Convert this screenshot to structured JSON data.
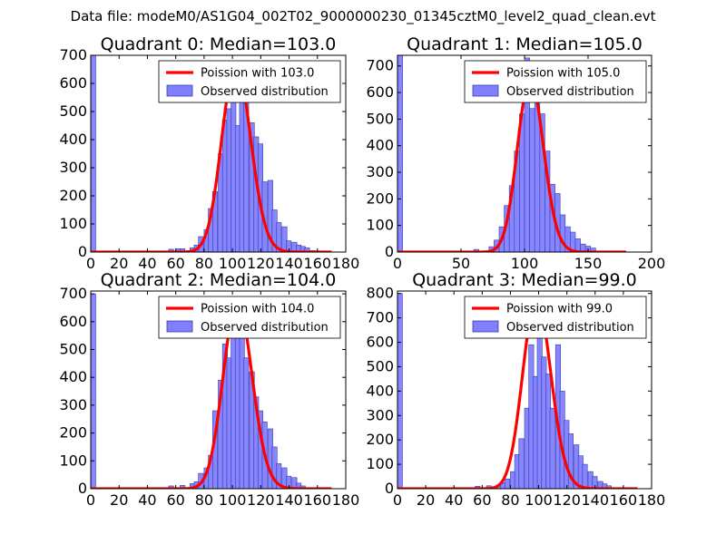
{
  "suptitle": "Data file: modeM0/AS1G04_002T02_9000000230_01345cztM0_level2_quad_clean.evt",
  "colors": {
    "hist_fill": "#7f7fff",
    "hist_edge": "#3b3bb0",
    "poisson": "#ff0000",
    "axis": "#000000"
  },
  "legend_labels": {
    "observed": "Observed distribution"
  },
  "chart_data": [
    {
      "type": "bar",
      "title": "Quadrant 0: Median=103.0",
      "median": 103.0,
      "poisson_label": "Poission with 103.0",
      "poisson_peak": 670,
      "xlim": [
        0,
        180
      ],
      "ylim": [
        0,
        700
      ],
      "xticks": [
        0,
        20,
        40,
        60,
        80,
        100,
        120,
        140,
        160,
        180
      ],
      "yticks": [
        0,
        100,
        200,
        300,
        400,
        500,
        600,
        700
      ],
      "bin_width": 3.5,
      "bins": [
        [
          0,
          700
        ],
        [
          55,
          10
        ],
        [
          60,
          12
        ],
        [
          63,
          12
        ],
        [
          70,
          15
        ],
        [
          73,
          25
        ],
        [
          76,
          55
        ],
        [
          80,
          80
        ],
        [
          83,
          155
        ],
        [
          86,
          215
        ],
        [
          90,
          350
        ],
        [
          93,
          470
        ],
        [
          96,
          510
        ],
        [
          99,
          670
        ],
        [
          102,
          450
        ],
        [
          105,
          580
        ],
        [
          108,
          660
        ],
        [
          112,
          460
        ],
        [
          115,
          410
        ],
        [
          118,
          385
        ],
        [
          121,
          250
        ],
        [
          125,
          255
        ],
        [
          128,
          150
        ],
        [
          131,
          105
        ],
        [
          135,
          90
        ],
        [
          138,
          40
        ],
        [
          142,
          35
        ],
        [
          145,
          25
        ],
        [
          148,
          20
        ],
        [
          151,
          15
        ],
        [
          155,
          5
        ]
      ]
    },
    {
      "type": "bar",
      "title": "Quadrant 1: Median=105.0",
      "median": 105.0,
      "poisson_label": "Poission with 105.0",
      "poisson_peak": 650,
      "xlim": [
        0,
        200
      ],
      "ylim": [
        0,
        740
      ],
      "xticks": [
        0,
        50,
        100,
        150,
        200
      ],
      "yticks": [
        0,
        100,
        200,
        300,
        400,
        500,
        600,
        700
      ],
      "bin_width": 4,
      "bins": [
        [
          0,
          740
        ],
        [
          60,
          10
        ],
        [
          72,
          20
        ],
        [
          76,
          45
        ],
        [
          80,
          95
        ],
        [
          84,
          175
        ],
        [
          88,
          250
        ],
        [
          92,
          380
        ],
        [
          96,
          520
        ],
        [
          100,
          730
        ],
        [
          104,
          540
        ],
        [
          108,
          650
        ],
        [
          112,
          520
        ],
        [
          116,
          380
        ],
        [
          120,
          255
        ],
        [
          124,
          220
        ],
        [
          128,
          140
        ],
        [
          132,
          95
        ],
        [
          136,
          75
        ],
        [
          140,
          50
        ],
        [
          144,
          30
        ],
        [
          148,
          22
        ],
        [
          152,
          15
        ]
      ]
    },
    {
      "type": "bar",
      "title": "Quadrant 2: Median=104.0",
      "median": 104.0,
      "poisson_label": "Poission with 104.0",
      "poisson_peak": 670,
      "xlim": [
        0,
        180
      ],
      "ylim": [
        0,
        710
      ],
      "xticks": [
        0,
        20,
        40,
        60,
        80,
        100,
        120,
        140,
        160,
        180
      ],
      "yticks": [
        0,
        100,
        200,
        300,
        400,
        500,
        600,
        700
      ],
      "bin_width": 3.5,
      "bins": [
        [
          0,
          700
        ],
        [
          55,
          10
        ],
        [
          63,
          12
        ],
        [
          70,
          18
        ],
        [
          73,
          25
        ],
        [
          76,
          55
        ],
        [
          80,
          75
        ],
        [
          83,
          120
        ],
        [
          86,
          280
        ],
        [
          90,
          390
        ],
        [
          93,
          520
        ],
        [
          96,
          470
        ],
        [
          99,
          620
        ],
        [
          102,
          590
        ],
        [
          105,
          580
        ],
        [
          108,
          470
        ],
        [
          112,
          420
        ],
        [
          115,
          330
        ],
        [
          118,
          280
        ],
        [
          121,
          240
        ],
        [
          125,
          215
        ],
        [
          128,
          150
        ],
        [
          131,
          90
        ],
        [
          135,
          75
        ],
        [
          138,
          45
        ],
        [
          142,
          40
        ],
        [
          145,
          20
        ],
        [
          148,
          10
        ]
      ]
    },
    {
      "type": "bar",
      "title": "Quadrant 3: Median=99.0",
      "median": 99.0,
      "poisson_label": "Poission with 99.0",
      "poisson_peak": 780,
      "xlim": [
        0,
        180
      ],
      "ylim": [
        0,
        810
      ],
      "xticks": [
        0,
        20,
        40,
        60,
        80,
        100,
        120,
        140,
        160,
        180
      ],
      "yticks": [
        0,
        100,
        200,
        300,
        400,
        500,
        600,
        700,
        800
      ],
      "bin_width": 3.5,
      "bins": [
        [
          0,
          800
        ],
        [
          55,
          10
        ],
        [
          63,
          12
        ],
        [
          70,
          15
        ],
        [
          73,
          25
        ],
        [
          76,
          40
        ],
        [
          80,
          70
        ],
        [
          83,
          140
        ],
        [
          86,
          205
        ],
        [
          90,
          330
        ],
        [
          93,
          590
        ],
        [
          96,
          460
        ],
        [
          99,
          740
        ],
        [
          102,
          540
        ],
        [
          105,
          470
        ],
        [
          108,
          330
        ],
        [
          112,
          590
        ],
        [
          115,
          400
        ],
        [
          118,
          280
        ],
        [
          121,
          225
        ],
        [
          125,
          180
        ],
        [
          128,
          135
        ],
        [
          131,
          100
        ],
        [
          135,
          70
        ],
        [
          138,
          50
        ],
        [
          142,
          30
        ],
        [
          145,
          20
        ],
        [
          148,
          12
        ]
      ]
    }
  ]
}
